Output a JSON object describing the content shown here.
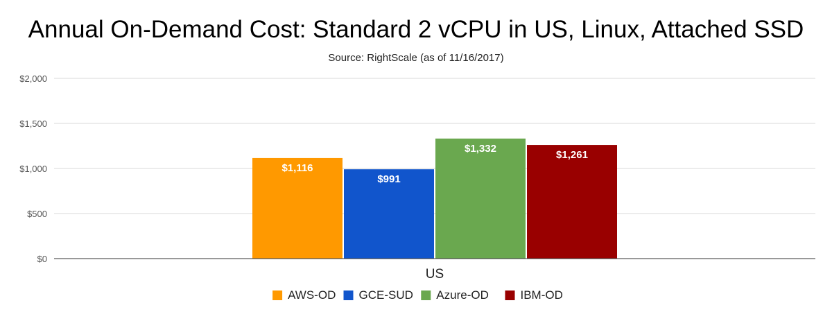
{
  "chart_data": {
    "type": "bar",
    "title": "Annual On-Demand Cost: Standard 2 vCPU in US, Linux, Attached SSD",
    "subtitle": "Source: RightScale (as of 11/16/2017)",
    "xlabel": "",
    "ylabel": "",
    "categories": [
      "US"
    ],
    "ylim": [
      0,
      2000
    ],
    "yticks": [
      0,
      500,
      1000,
      1500,
      2000
    ],
    "ytick_labels": [
      "$0",
      "$500",
      "$1,000",
      "$1,500",
      "$2,000"
    ],
    "grid": true,
    "legend_position": "bottom",
    "series": [
      {
        "name": "AWS-OD",
        "values": [
          1116
        ],
        "labels": [
          "$1,116"
        ],
        "color": "#ff9900"
      },
      {
        "name": "GCE-SUD",
        "values": [
          991
        ],
        "labels": [
          "$991"
        ],
        "color": "#1155cc"
      },
      {
        "name": "Azure-OD",
        "values": [
          1332
        ],
        "labels": [
          "$1,332"
        ],
        "color": "#6aa84f"
      },
      {
        "name": "IBM-OD",
        "values": [
          1261
        ],
        "labels": [
          "$1,261"
        ],
        "color": "#990000"
      }
    ]
  }
}
